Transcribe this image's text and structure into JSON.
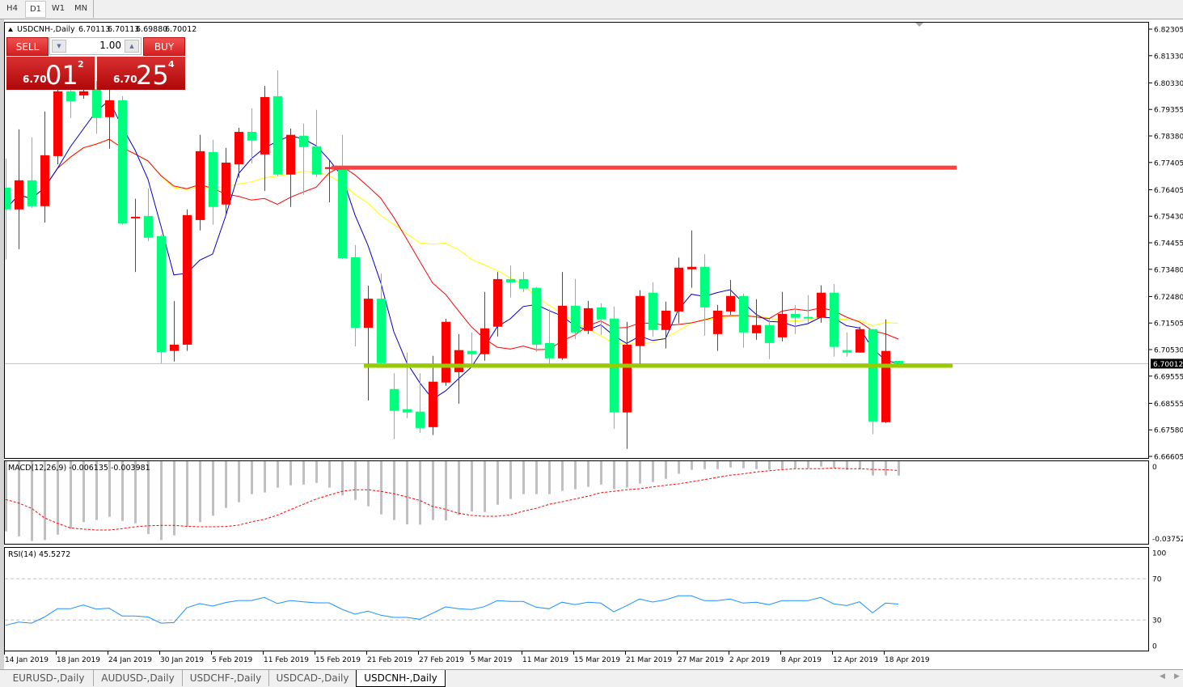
{
  "toolbar": {
    "timeframes": [
      "H4",
      "D1",
      "W1",
      "MN"
    ],
    "active": "D1"
  },
  "chart": {
    "symbol_label": "USDCNH-,Daily",
    "ohlc": [
      "6.70113",
      "6.70113",
      "6.69880",
      "6.70012"
    ],
    "current_price_label": "6.70012",
    "price_axis_labels": [
      "6.82305",
      "6.81330",
      "6.80330",
      "6.79355",
      "6.78380",
      "6.77405",
      "6.76405",
      "6.75430",
      "6.74455",
      "6.73480",
      "6.72480",
      "6.71505",
      "6.70530",
      "6.69555",
      "6.68555",
      "6.67580",
      "6.66605"
    ],
    "date_labels": [
      "14 Jan 2019",
      "18 Jan 2019",
      "24 Jan 2019",
      "30 Jan 2019",
      "5 Feb 2019",
      "11 Feb 2019",
      "15 Feb 2019",
      "21 Feb 2019",
      "27 Feb 2019",
      "5 Mar 2019",
      "11 Mar 2019",
      "15 Mar 2019",
      "21 Mar 2019",
      "27 Mar 2019",
      "2 Apr 2019",
      "8 Apr 2019",
      "12 Apr 2019",
      "18 Apr 2019"
    ],
    "macd_label": "MACD(12,26,9) -0.006135 -0.003981",
    "macd_axis_labels": [
      "0",
      "-0.037529"
    ],
    "rsi_label": "RSI(14) 45.5272",
    "rsi_axis_labels": [
      "100",
      "70",
      "30",
      "0"
    ]
  },
  "trade_panel": {
    "sell_label": "SELL",
    "buy_label": "BUY",
    "lot_value": "1.00",
    "sell_price": {
      "prefix": "6.70",
      "big": "01",
      "sup": "2"
    },
    "buy_price": {
      "prefix": "6.70",
      "big": "25",
      "sup": "4"
    }
  },
  "tabs": [
    {
      "label": "EURUSD-,Daily",
      "active": false
    },
    {
      "label": "AUDUSD-,Daily",
      "active": false
    },
    {
      "label": "USDCHF-,Daily",
      "active": false
    },
    {
      "label": "USDCAD-,Daily",
      "active": false
    },
    {
      "label": "USDCNH-,Daily",
      "active": true
    }
  ],
  "colors": {
    "bull_candle": "#ff0000",
    "bear_candle": "#00ff7f",
    "ma_fast": "#0000cc",
    "ma_mid": "#ff0000",
    "ma_slow": "#ffff00",
    "resistance_line": "#ff4040",
    "support_line": "#99cc00",
    "macd_hist": "#c0c0c0",
    "macd_signal": "#ff0000",
    "rsi_line": "#1e90ff"
  },
  "chart_data": {
    "type": "candlestick",
    "symbol": "USDCNH-",
    "timeframe": "Daily",
    "ylim": [
      6.66605,
      6.82305
    ],
    "ohlc": [
      [
        6.7648,
        6.7755,
        6.7384,
        6.7568
      ],
      [
        6.7568,
        6.7862,
        6.7422,
        6.7675
      ],
      [
        6.7675,
        6.7833,
        6.7574,
        6.758
      ],
      [
        6.758,
        6.7928,
        6.752,
        6.7767
      ],
      [
        6.7764,
        6.804,
        6.7734,
        6.8002
      ],
      [
        6.8002,
        6.8055,
        6.7904,
        6.7966
      ],
      [
        6.7987,
        6.804,
        6.7975,
        6.8002
      ],
      [
        6.8011,
        6.804,
        6.7846,
        6.7904
      ],
      [
        6.7907,
        6.8011,
        6.7791,
        6.7969
      ],
      [
        6.7969,
        6.7984,
        6.7512,
        6.7516
      ],
      [
        6.7538,
        6.7607,
        6.7338,
        6.7541
      ],
      [
        6.7544,
        6.7645,
        6.7452,
        6.7464
      ],
      [
        6.747,
        6.7476,
        6.7003,
        6.7044
      ],
      [
        6.7048,
        6.7231,
        6.7009,
        6.7071
      ],
      [
        6.7071,
        6.7568,
        6.7048,
        6.7547
      ],
      [
        6.7529,
        6.7842,
        6.7491,
        6.7782
      ],
      [
        6.7779,
        6.7824,
        6.7512,
        6.7577
      ],
      [
        6.7586,
        6.7794,
        6.755,
        6.774
      ],
      [
        6.7734,
        6.7868,
        6.7684,
        6.7853
      ],
      [
        6.7853,
        6.794,
        6.7737,
        6.7821
      ],
      [
        6.777,
        6.8022,
        6.7636,
        6.7981
      ],
      [
        6.7984,
        6.8079,
        6.769,
        6.7696
      ],
      [
        6.7696,
        6.7865,
        6.7577,
        6.7842
      ],
      [
        6.7839,
        6.7883,
        6.7622,
        6.7797
      ],
      [
        6.78,
        6.7934,
        6.7687,
        6.7696
      ],
      [
        6.772,
        6.7749,
        6.7594,
        6.7723
      ],
      [
        6.7723,
        6.7842,
        6.7386,
        6.7389
      ],
      [
        6.7392,
        6.7437,
        6.7065,
        6.7133
      ],
      [
        6.7133,
        6.7288,
        6.6866,
        6.724
      ],
      [
        6.724,
        6.7333,
        6.6994,
        6.7003
      ],
      [
        6.6908,
        6.6966,
        6.6724,
        6.6828
      ],
      [
        6.6834,
        6.7042,
        6.6801,
        6.6822
      ],
      [
        6.6825,
        6.6966,
        6.6747,
        6.6765
      ],
      [
        6.6768,
        6.703,
        6.6739,
        6.6935
      ],
      [
        6.6932,
        6.7166,
        6.692,
        6.7155
      ],
      [
        6.697,
        6.711,
        6.6854,
        6.7051
      ],
      [
        6.7048,
        6.7116,
        6.6994,
        6.7036
      ],
      [
        6.7036,
        6.7265,
        6.7012,
        6.7131
      ],
      [
        6.7137,
        6.7338,
        6.7101,
        6.7312
      ],
      [
        6.7312,
        6.7362,
        6.7244,
        6.73
      ],
      [
        6.7312,
        6.7339,
        6.7265,
        6.7277
      ],
      [
        6.728,
        6.7283,
        6.7045,
        6.7071
      ],
      [
        6.7077,
        6.7202,
        6.6994,
        6.7021
      ],
      [
        6.7021,
        6.7338,
        6.7015,
        6.7214
      ],
      [
        6.7214,
        6.7312,
        6.7091,
        6.7116
      ],
      [
        6.7122,
        6.7232,
        6.711,
        6.7205
      ],
      [
        6.7208,
        6.7223,
        6.7107,
        6.7164
      ],
      [
        6.7167,
        6.7211,
        6.6762,
        6.6822
      ],
      [
        6.6822,
        6.7155,
        6.6688,
        6.7071
      ],
      [
        6.7066,
        6.7271,
        6.7,
        6.725
      ],
      [
        6.7262,
        6.73,
        6.7101,
        6.7125
      ],
      [
        6.7125,
        6.7229,
        6.7057,
        6.7196
      ],
      [
        6.7193,
        6.7391,
        6.7149,
        6.7354
      ],
      [
        6.7348,
        6.7491,
        6.728,
        6.7357
      ],
      [
        6.7357,
        6.7404,
        6.7104,
        6.7208
      ],
      [
        6.711,
        6.7217,
        6.7048,
        6.7196
      ],
      [
        6.7193,
        6.7309,
        6.7181,
        6.725
      ],
      [
        6.725,
        6.7259,
        6.706,
        6.7116
      ],
      [
        6.7113,
        6.7238,
        6.7089,
        6.7143
      ],
      [
        6.7143,
        6.7164,
        6.7018,
        6.7077
      ],
      [
        6.7098,
        6.7265,
        6.7083,
        6.7184
      ],
      [
        6.7184,
        6.7217,
        6.711,
        6.717
      ],
      [
        6.7173,
        6.7253,
        6.7152,
        6.7167
      ],
      [
        6.717,
        6.7289,
        6.7152,
        6.7262
      ],
      [
        6.7262,
        6.7294,
        6.7027,
        6.7063
      ],
      [
        6.7051,
        6.7116,
        6.7027,
        6.7042
      ],
      [
        6.7042,
        6.7137,
        6.7042,
        6.7128
      ],
      [
        6.7128,
        6.7128,
        6.6742,
        6.6789
      ],
      [
        6.6786,
        6.7164,
        6.6783,
        6.7048
      ],
      [
        6.70113,
        6.70113,
        6.6988,
        6.70012
      ]
    ],
    "current_price": 6.70012,
    "horizontal_lines": [
      {
        "price": 6.7723,
        "color": "#ff4040"
      },
      {
        "price": 6.6995,
        "color": "#99cc00"
      }
    ],
    "macd": {
      "params": "12,26,9",
      "ylim": [
        -0.037529,
        0
      ],
      "main": [
        -0.0301,
        -0.0322,
        -0.0342,
        -0.0338,
        -0.0315,
        -0.029,
        -0.0261,
        -0.0252,
        -0.0238,
        -0.0256,
        -0.0266,
        -0.0312,
        -0.0338,
        -0.0318,
        -0.028,
        -0.0261,
        -0.0234,
        -0.02,
        -0.0176,
        -0.0141,
        -0.0134,
        -0.0113,
        -0.0103,
        -0.01,
        -0.0093,
        -0.0113,
        -0.0147,
        -0.0166,
        -0.0193,
        -0.0228,
        -0.0252,
        -0.0271,
        -0.0272,
        -0.0252,
        -0.0254,
        -0.0231,
        -0.0215,
        -0.0218,
        -0.0186,
        -0.0162,
        -0.0141,
        -0.0141,
        -0.0141,
        -0.0127,
        -0.012,
        -0.011,
        -0.01,
        -0.012,
        -0.0113,
        -0.0096,
        -0.0089,
        -0.0075,
        -0.0054,
        -0.0037,
        -0.0034,
        -0.0034,
        -0.0027,
        -0.003,
        -0.0034,
        -0.0037,
        -0.0034,
        -0.003,
        -0.003,
        -0.0023,
        -0.0027,
        -0.0037,
        -0.0034,
        -0.0061,
        -0.0061,
        -0.006135
      ],
      "signal": [
        -0.0164,
        -0.0179,
        -0.0202,
        -0.0243,
        -0.0266,
        -0.0286,
        -0.0291,
        -0.0295,
        -0.0295,
        -0.0289,
        -0.0281,
        -0.0277,
        -0.0275,
        -0.0275,
        -0.0279,
        -0.0281,
        -0.0281,
        -0.028,
        -0.0274,
        -0.026,
        -0.0249,
        -0.0231,
        -0.0208,
        -0.0185,
        -0.0162,
        -0.0145,
        -0.0129,
        -0.0122,
        -0.0122,
        -0.0129,
        -0.0139,
        -0.0153,
        -0.0168,
        -0.0194,
        -0.0206,
        -0.0223,
        -0.0232,
        -0.0236,
        -0.0236,
        -0.023,
        -0.0214,
        -0.0202,
        -0.0185,
        -0.0174,
        -0.0162,
        -0.015,
        -0.0135,
        -0.0129,
        -0.0122,
        -0.0118,
        -0.011,
        -0.0103,
        -0.0097,
        -0.0088,
        -0.0079,
        -0.0069,
        -0.006,
        -0.0054,
        -0.0046,
        -0.0041,
        -0.0036,
        -0.0032,
        -0.0032,
        -0.0032,
        -0.0029,
        -0.0032,
        -0.0032,
        -0.0035,
        -0.0036,
        -0.003981
      ]
    },
    "rsi": {
      "period": 14,
      "ylim": [
        0,
        100
      ],
      "levels": [
        70,
        30
      ],
      "values": [
        25,
        28,
        27,
        33,
        41,
        41,
        44.6,
        40.7,
        41.5,
        34,
        34,
        33,
        27,
        27.6,
        42,
        46,
        43.6,
        47,
        49,
        49,
        52,
        46,
        49,
        47.7,
        46.7,
        46.7,
        40.4,
        35.7,
        38.6,
        34.7,
        32.6,
        32.6,
        30.8,
        36.7,
        42.8,
        41,
        40.2,
        43,
        48.8,
        48,
        48,
        42.5,
        41,
        47.3,
        44.9,
        47.3,
        46.5,
        38,
        44,
        50.4,
        47.5,
        49.6,
        53.5,
        53.5,
        48.8,
        48.8,
        50.4,
        46.5,
        47.3,
        44.9,
        48.8,
        48.8,
        48.8,
        52,
        45.7,
        44,
        47.7,
        37,
        46.5,
        45.5272
      ]
    }
  }
}
